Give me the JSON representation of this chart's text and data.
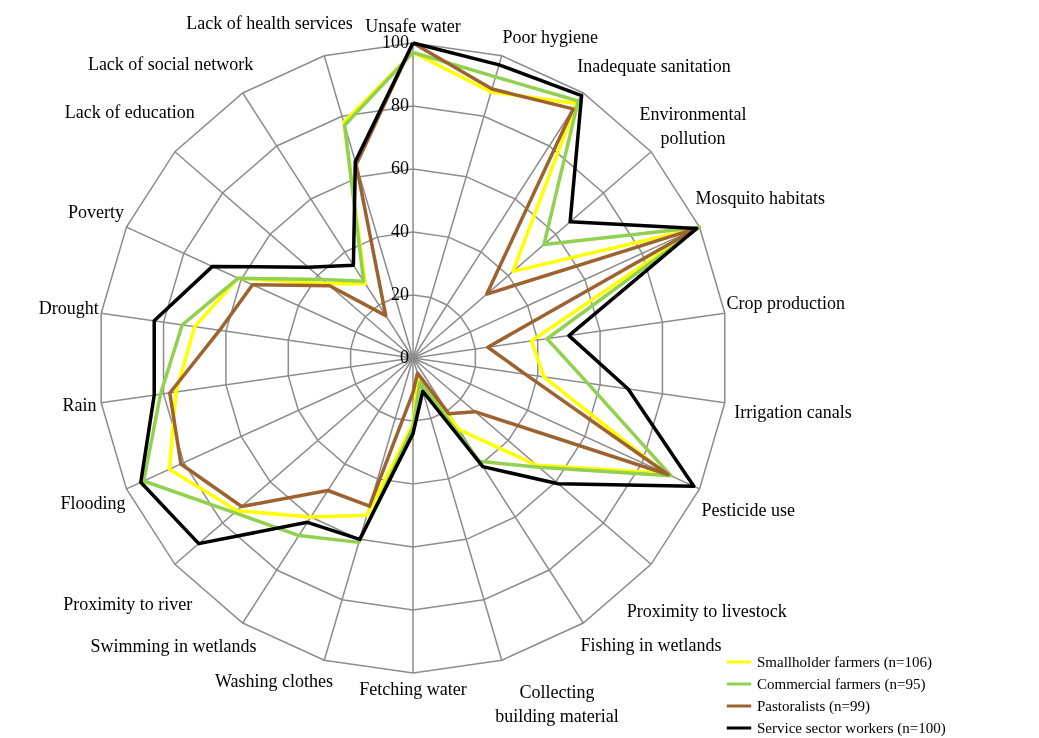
{
  "chart_data": {
    "type": "radar",
    "categories": [
      "Unsafe water",
      "Poor hygiene",
      "Inadequate sanitation",
      "Environmental pollution",
      "Mosquito habitats",
      "Crop production",
      "Irrigation canals",
      "Pesticide use",
      "Proximity to livestock",
      "Fishing in wetlands",
      "Collecting building material",
      "Fetching water",
      "Washing clothes",
      "Swimming in wetlands",
      "Proximity to river",
      "Flooding",
      "Rain",
      "Drought",
      "Poverty",
      "Lack of education",
      "Lack of social network",
      "Lack of health services"
    ],
    "series": [
      {
        "name": "Smallholder farmers (n=106)",
        "color": "#ffff00",
        "values": [
          97,
          88,
          96,
          42,
          99,
          38,
          42,
          88,
          52,
          27,
          6,
          21,
          52,
          60,
          74,
          85,
          76,
          70,
          61,
          36,
          28,
          78
        ]
      },
      {
        "name": "Commercial farmers (n=95)",
        "color": "#92d050",
        "values": [
          97,
          93,
          97,
          55,
          100,
          43,
          56,
          90,
          53,
          39,
          8,
          22,
          61,
          67,
          75,
          94,
          81,
          74,
          61,
          38,
          29,
          77
        ]
      },
      {
        "name": "Pastoralists (n=99)",
        "color": "#9c6330",
        "values": [
          100,
          89,
          94,
          31,
          99,
          24,
          36,
          89,
          26,
          21,
          5,
          11,
          49,
          50,
          72,
          81,
          78,
          62,
          56,
          35,
          16,
          64
        ]
      },
      {
        "name": "Service sector workers (n=100)",
        "color": "#000000",
        "values": [
          100,
          97,
          99,
          66,
          99,
          50,
          69,
          98,
          61,
          41,
          11,
          24,
          60,
          62,
          90,
          95,
          83,
          83,
          70,
          44,
          35,
          65
        ]
      }
    ],
    "ylim": [
      0,
      100
    ],
    "yticks": [
      0,
      20,
      40,
      60,
      80,
      100
    ],
    "grid": true,
    "legend": "bottom right"
  }
}
